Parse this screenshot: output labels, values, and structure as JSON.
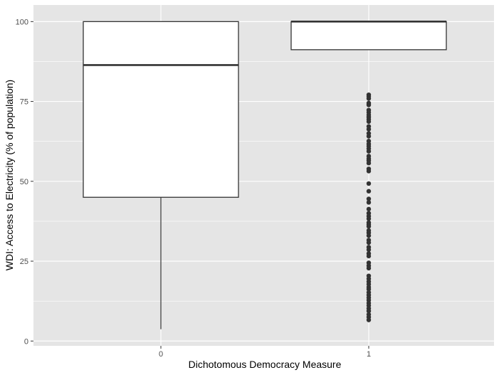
{
  "chart_data": {
    "type": "boxplot",
    "title": "",
    "xlabel": "Dichotomous Democracy Measure",
    "ylabel": "WDI: Access to Electricity (% of population)",
    "categories": [
      "0",
      "1"
    ],
    "ylim": [
      -1.5,
      105.2
    ],
    "yticks": [
      0,
      25,
      50,
      75,
      100
    ],
    "grid": true,
    "legend": "none",
    "boxes": [
      {
        "category": "0",
        "whisker_low": 3.7,
        "q1": 45,
        "median": 86.4,
        "q3": 100,
        "whisker_high": 100,
        "outliers": []
      },
      {
        "category": "1",
        "whisker_low": 91.2,
        "q1": 91.2,
        "median": 100,
        "q3": 100,
        "whisker_high": 100,
        "outliers": [
          77.1,
          76.6,
          75.9,
          74.5,
          73.9,
          72.3,
          71.6,
          70.8,
          70.1,
          69.4,
          68.7,
          67.2,
          66.3,
          65.0,
          64.1,
          62.6,
          61.7,
          61.0,
          60.2,
          59.4,
          57.9,
          57.1,
          56.5,
          55.7,
          53.9,
          53.2,
          49.3,
          46.9,
          44.5,
          43.4,
          41.3,
          40.0,
          39.1,
          38.3,
          37.1,
          36.5,
          35.9,
          34.6,
          33.9,
          33.0,
          31.6,
          30.8,
          29.4,
          28.6,
          27.4,
          26.6,
          24.5,
          23.6,
          22.8,
          20.4,
          19.5,
          18.6,
          17.8,
          16.9,
          16.2,
          15.2,
          14.4,
          13.6,
          12.8,
          11.9,
          11.1,
          10.2,
          9.4,
          8.3,
          7.5,
          6.6
        ]
      }
    ],
    "colors": {
      "panel": "#e5e5e5",
      "grid": "#ffffff",
      "box_fill": "#ffffff",
      "box_line": "#333333",
      "point": "#333333"
    }
  }
}
